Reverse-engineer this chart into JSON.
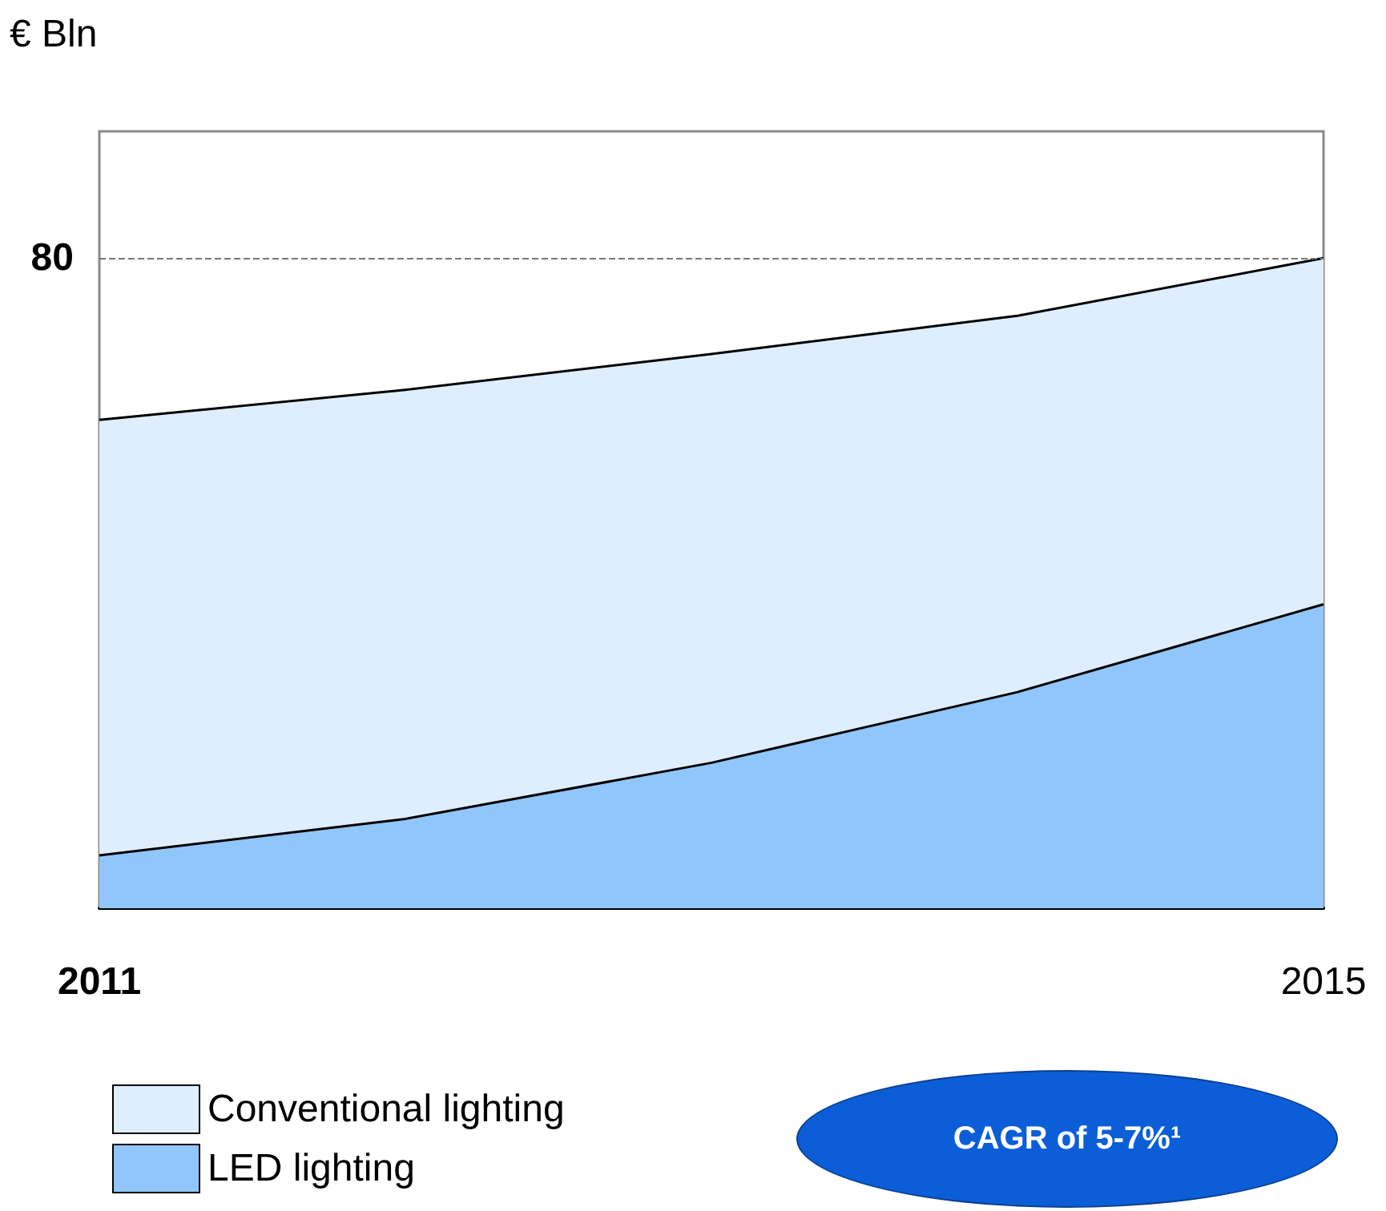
{
  "chart_data": {
    "type": "area",
    "stacked": true,
    "marker": "none",
    "legend": "bottom left",
    "categories": [
      "2011",
      null,
      null,
      null,
      "2015"
    ],
    "series": [
      {
        "name": "LED lighting",
        "color": "#91c6fb",
        "values": [
          6.5,
          11,
          17.9,
          26.6,
          37.4
        ]
      },
      {
        "name": "Conventional lighting",
        "color": "#dfeefe",
        "values": [
          53.6,
          52.8,
          50.3,
          46.3,
          42.6
        ]
      }
    ],
    "ylim": [
      0,
      95.6
    ],
    "yticks": [
      80
    ],
    "ref_lines": [
      {
        "axis": "y",
        "value": 80,
        "line_style": "dashed",
        "color": "#777777"
      }
    ],
    "annotations": [
      "€ Bln",
      "CAGR of 5-7%¹"
    ]
  }
}
